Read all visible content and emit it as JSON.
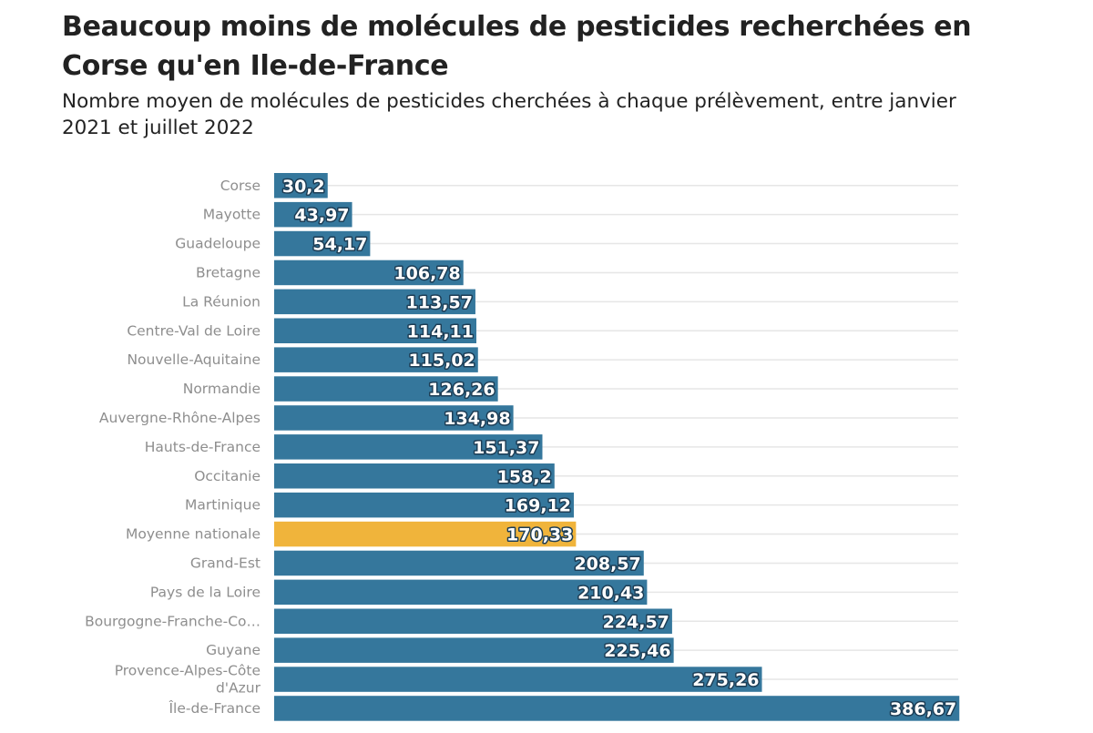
{
  "chart_data": {
    "type": "bar",
    "orientation": "horizontal",
    "title": "Beaucoup moins de molécules de pesticides recherchées en Corse qu'en Ile-de-France",
    "subtitle": "Nombre moyen de molécules de pesticides cherchées à chaque prélèvement, entre janvier 2021 et juillet 2022",
    "categories": [
      [
        "Corse"
      ],
      [
        "Mayotte"
      ],
      [
        "Guadeloupe"
      ],
      [
        "Bretagne"
      ],
      [
        "La Réunion"
      ],
      [
        "Centre-Val de Loire"
      ],
      [
        "Nouvelle-Aquitaine"
      ],
      [
        "Normandie"
      ],
      [
        "Auvergne-Rhône-Alpes"
      ],
      [
        "Hauts-de-France"
      ],
      [
        "Occitanie"
      ],
      [
        "Martinique"
      ],
      [
        "Moyenne nationale"
      ],
      [
        "Grand-Est"
      ],
      [
        "Pays de la Loire"
      ],
      [
        "Bourgogne-Franche-Co…"
      ],
      [
        "Guyane"
      ],
      [
        "Provence-Alpes-Côte",
        "d'Azur"
      ],
      [
        "Île-de-France"
      ]
    ],
    "values": [
      30.2,
      43.97,
      54.17,
      106.78,
      113.57,
      114.11,
      115.02,
      126.26,
      134.98,
      151.37,
      158.2,
      169.12,
      170.33,
      208.57,
      210.43,
      224.57,
      225.46,
      275.26,
      386.67
    ],
    "value_labels": [
      "30,2",
      "43,97",
      "54,17",
      "106,78",
      "113,57",
      "114,11",
      "115,02",
      "126,26",
      "134,98",
      "151,37",
      "158,2",
      "169,12",
      "170,33",
      "208,57",
      "210,43",
      "224,57",
      "225,46",
      "275,26",
      "386,67"
    ],
    "highlight": "Moyenne nationale",
    "colors": {
      "bar": "#35779c",
      "highlight": "#f0b43b",
      "grid": "#e6e6e6",
      "category_text": "#8e8e8e",
      "title_text": "#222222"
    },
    "xlim": [
      0,
      400
    ],
    "grid": true,
    "legend": "none"
  }
}
